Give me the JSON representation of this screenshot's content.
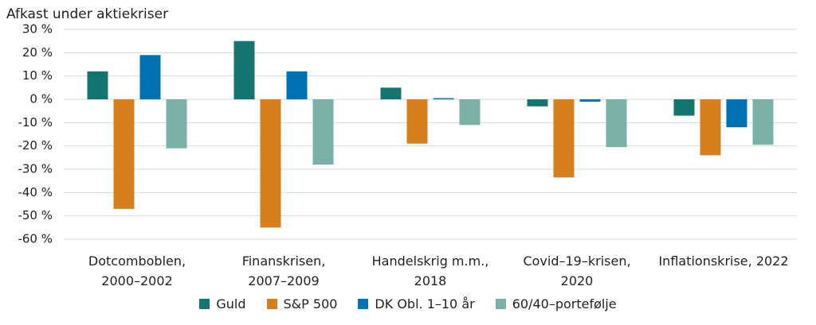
{
  "chart_data": {
    "type": "bar",
    "title": "Afkast under aktiekriser",
    "categories": [
      "Dotcomboblen,\n2000–2002",
      "Finanskrisen,\n2007–2009",
      "Handelskrig m.m.,\n2018",
      "Covid–19–krisen,\n2020",
      "Inflationskrise, 2022"
    ],
    "series": [
      {
        "name": "Guld",
        "color": "#13756d",
        "values": [
          12,
          25,
          5,
          -3,
          -7
        ]
      },
      {
        "name": "S&P 500",
        "color": "#d67f1f",
        "values": [
          -47,
          -55,
          -19,
          -33.5,
          -24
        ]
      },
      {
        "name": "DK Obl. 1–10 år",
        "color": "#0072b1",
        "values": [
          19,
          12,
          0.5,
          -1,
          -12
        ]
      },
      {
        "name": "60/40–portefølje",
        "color": "#7ab0a5",
        "values": [
          -21,
          -28,
          -11,
          -20.5,
          -19.5
        ]
      }
    ],
    "ylim": [
      -60,
      30
    ],
    "yticks": [
      {
        "value": -60,
        "label": "-60 %"
      },
      {
        "value": -50,
        "label": "-50 %"
      },
      {
        "value": -40,
        "label": "-40 %"
      },
      {
        "value": -30,
        "label": "-30 %"
      },
      {
        "value": -20,
        "label": "-20 %"
      },
      {
        "value": -10,
        "label": "-10 %"
      },
      {
        "value": 0,
        "label": "0 %"
      },
      {
        "value": 10,
        "label": "10 %"
      },
      {
        "value": 20,
        "label": "20 %"
      },
      {
        "value": 30,
        "label": "30 %"
      }
    ],
    "grid": true
  }
}
